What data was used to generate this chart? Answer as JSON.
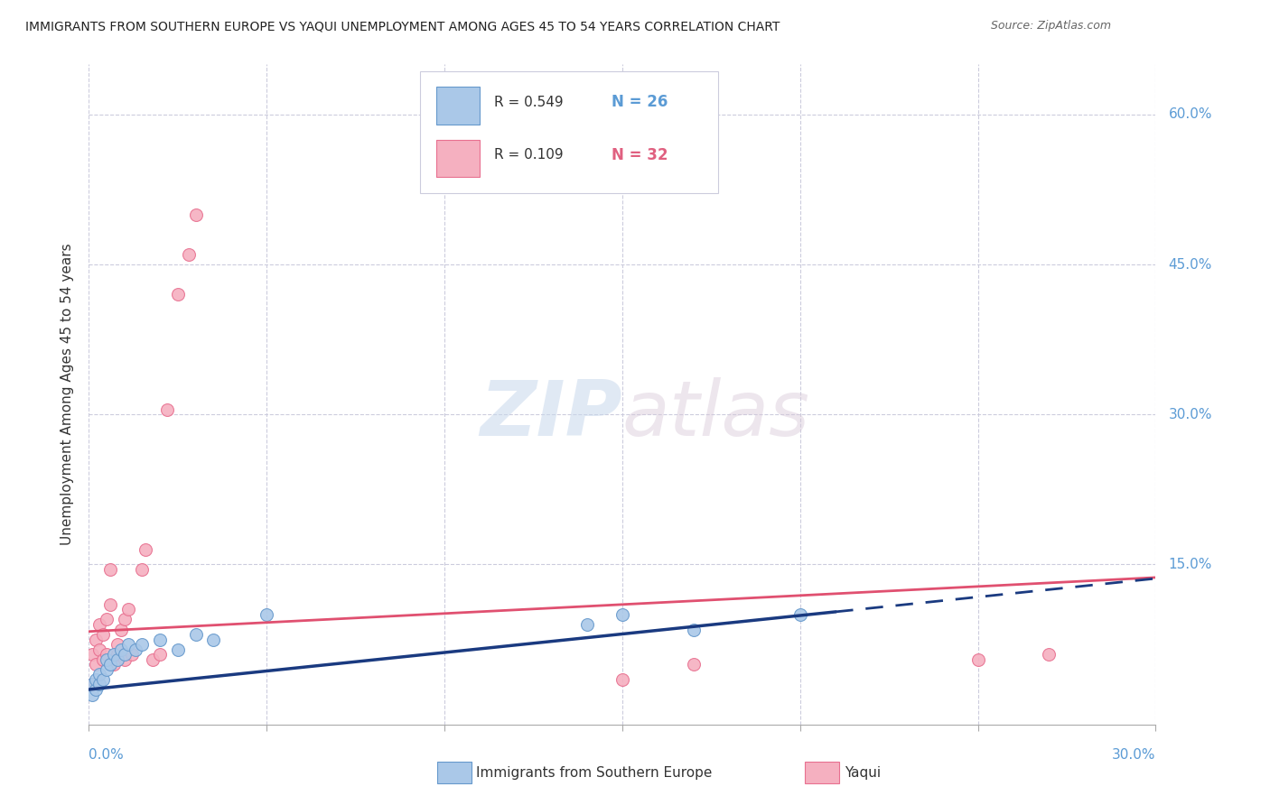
{
  "title": "IMMIGRANTS FROM SOUTHERN EUROPE VS YAQUI UNEMPLOYMENT AMONG AGES 45 TO 54 YEARS CORRELATION CHART",
  "source": "Source: ZipAtlas.com",
  "ylabel": "Unemployment Among Ages 45 to 54 years",
  "xlim": [
    0.0,
    0.3
  ],
  "ylim": [
    -0.01,
    0.65
  ],
  "legend_R_blue": "0.549",
  "legend_N_blue": "26",
  "legend_R_pink": "0.109",
  "legend_N_pink": "32",
  "blue_color": "#aac8e8",
  "blue_edge_color": "#6699cc",
  "pink_color": "#f5b0c0",
  "pink_edge_color": "#e87090",
  "blue_line_color": "#1a3a80",
  "pink_line_color": "#e05070",
  "blue_scatter_x": [
    0.001,
    0.001,
    0.002,
    0.002,
    0.003,
    0.003,
    0.004,
    0.005,
    0.005,
    0.006,
    0.007,
    0.008,
    0.009,
    0.01,
    0.011,
    0.013,
    0.015,
    0.02,
    0.025,
    0.03,
    0.035,
    0.05,
    0.14,
    0.15,
    0.17,
    0.2
  ],
  "blue_scatter_y": [
    0.02,
    0.03,
    0.025,
    0.035,
    0.03,
    0.04,
    0.035,
    0.045,
    0.055,
    0.05,
    0.06,
    0.055,
    0.065,
    0.06,
    0.07,
    0.065,
    0.07,
    0.075,
    0.065,
    0.08,
    0.075,
    0.1,
    0.09,
    0.1,
    0.085,
    0.1
  ],
  "pink_scatter_x": [
    0.001,
    0.001,
    0.002,
    0.002,
    0.003,
    0.003,
    0.004,
    0.004,
    0.005,
    0.005,
    0.006,
    0.006,
    0.007,
    0.008,
    0.008,
    0.009,
    0.01,
    0.01,
    0.011,
    0.012,
    0.015,
    0.016,
    0.018,
    0.02,
    0.022,
    0.025,
    0.028,
    0.03,
    0.15,
    0.17,
    0.25,
    0.27
  ],
  "pink_scatter_y": [
    0.03,
    0.06,
    0.05,
    0.075,
    0.065,
    0.09,
    0.055,
    0.08,
    0.06,
    0.095,
    0.11,
    0.145,
    0.05,
    0.06,
    0.07,
    0.085,
    0.055,
    0.095,
    0.105,
    0.06,
    0.145,
    0.165,
    0.055,
    0.06,
    0.305,
    0.42,
    0.46,
    0.5,
    0.035,
    0.05,
    0.055,
    0.06
  ],
  "watermark_zip": "ZIP",
  "watermark_atlas": "atlas",
  "background_color": "#ffffff",
  "grid_color": "#ccccdd",
  "marker_size": 100,
  "blue_line_x_solid_end": 0.21,
  "pink_line_intercept": 0.083,
  "pink_line_slope": 0.18,
  "blue_line_intercept": 0.025,
  "blue_line_slope": 0.37
}
